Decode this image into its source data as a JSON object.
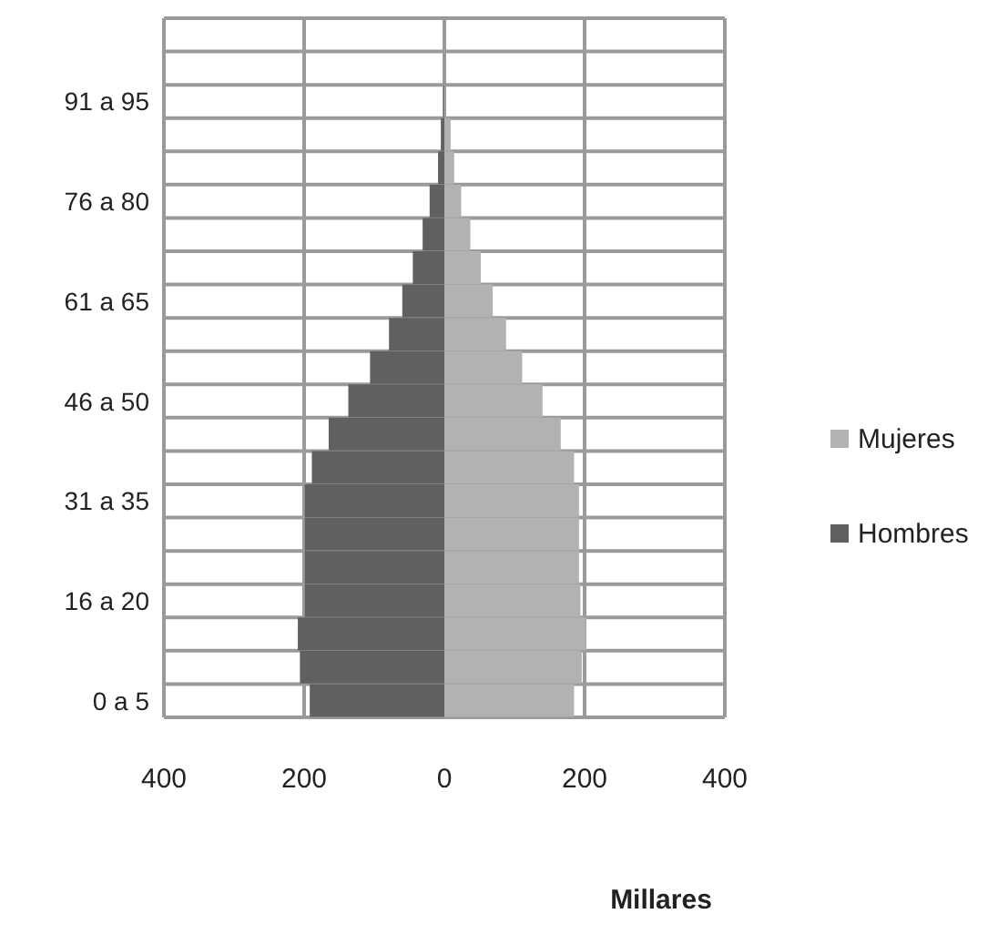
{
  "chart_data": {
    "type": "bar",
    "orientation": "horizontal",
    "stacked": true,
    "xlabel": "Millares",
    "categories": [
      null,
      null,
      "91 a 95",
      null,
      null,
      "76 a 80",
      null,
      null,
      "61 a 65",
      null,
      null,
      "46 a 50",
      null,
      null,
      "31 a 35",
      null,
      null,
      "16 a 20",
      null,
      null,
      "0 a 5"
    ],
    "series": [
      {
        "name": "Mujeres",
        "color": "#b2b2b2",
        "values": [
          0,
          0,
          1,
          9,
          14,
          24,
          37,
          52,
          69,
          88,
          111,
          140,
          166,
          185,
          192,
          192,
          192,
          194,
          202,
          196,
          185
        ]
      },
      {
        "name": "Hombres",
        "color": "#606060",
        "values": [
          0,
          0,
          -1,
          -5,
          -9,
          -21,
          -31,
          -45,
          -60,
          -79,
          -106,
          -137,
          -165,
          -189,
          -199,
          -199,
          -199,
          -199,
          -209,
          -206,
          -192
        ]
      }
    ],
    "xlim": [
      -400,
      400
    ],
    "xticks": [
      {
        "value": -400,
        "label": "400"
      },
      {
        "value": -200,
        "label": "200"
      },
      0,
      200,
      400
    ],
    "grid": true,
    "legend": "right"
  }
}
